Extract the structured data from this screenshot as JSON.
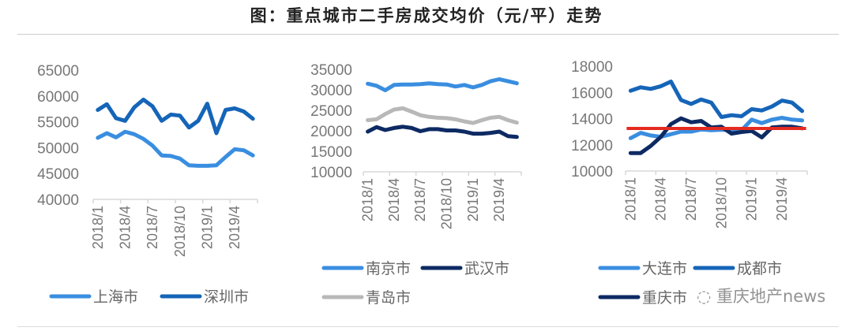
{
  "title": "图：重点城市二手房成交均价（元/平）走势",
  "watermark": "重庆地产news",
  "chart_data": [
    {
      "type": "line",
      "categories": [
        "2018/1",
        "2018/2",
        "2018/3",
        "2018/4",
        "2018/5",
        "2018/6",
        "2018/7",
        "2018/8",
        "2018/9",
        "2018/10",
        "2018/11",
        "2018/12",
        "2019/1",
        "2019/2",
        "2019/3",
        "2019/4",
        "2019/5",
        "2019/6"
      ],
      "tick_labels": [
        "2018/1",
        "2018/4",
        "2018/7",
        "2018/10",
        "2019/1",
        "2019/4"
      ],
      "ylim": [
        40000,
        65000
      ],
      "yticks": [
        "65000",
        "60000",
        "55000",
        "50000",
        "45000",
        "40000"
      ],
      "grid": false,
      "legend": "bottom",
      "series": [
        {
          "name": "上海市",
          "color": "#3a8ee0",
          "values": [
            51900,
            52800,
            52000,
            53100,
            52600,
            51700,
            50400,
            48500,
            48400,
            47900,
            46600,
            46500,
            46500,
            46600,
            48200,
            49700,
            49500,
            48500
          ]
        },
        {
          "name": "深圳市",
          "color": "#1565b8",
          "values": [
            57300,
            58400,
            55700,
            55200,
            57800,
            59300,
            58000,
            55200,
            56400,
            56200,
            53900,
            55200,
            58500,
            52800,
            57300,
            57600,
            57000,
            55600
          ]
        }
      ]
    },
    {
      "type": "line",
      "categories": [
        "2018/1",
        "2018/2",
        "2018/3",
        "2018/4",
        "2018/5",
        "2018/6",
        "2018/7",
        "2018/8",
        "2018/9",
        "2018/10",
        "2018/11",
        "2018/12",
        "2019/1",
        "2019/2",
        "2019/3",
        "2019/4",
        "2019/5",
        "2019/6"
      ],
      "tick_labels": [
        "2018/1",
        "2018/4",
        "2018/7",
        "2018/10",
        "2019/1",
        "2019/4"
      ],
      "ylim": [
        10000,
        35000
      ],
      "yticks": [
        "35000",
        "30000",
        "25000",
        "20000",
        "15000",
        "10000"
      ],
      "grid": false,
      "legend": "bottom",
      "series": [
        {
          "name": "南京市",
          "color": "#3a8ee0",
          "values": [
            31500,
            31000,
            29900,
            31200,
            31300,
            31300,
            31400,
            31600,
            31400,
            31300,
            30800,
            31200,
            30600,
            31200,
            32100,
            32600,
            32100,
            31600
          ]
        },
        {
          "name": "武汉市",
          "color": "#0d2a63",
          "values": [
            19800,
            20900,
            20200,
            20700,
            21000,
            20700,
            19900,
            20400,
            20400,
            20100,
            20100,
            19800,
            19300,
            19300,
            19500,
            19800,
            18700,
            18500
          ]
        },
        {
          "name": "青岛市",
          "color": "#b8b8b8",
          "values": [
            22600,
            22800,
            24100,
            25200,
            25500,
            24700,
            23800,
            23400,
            23200,
            23100,
            22800,
            22300,
            21900,
            22600,
            23200,
            23400,
            22600,
            22000
          ]
        }
      ]
    },
    {
      "type": "line",
      "categories": [
        "2018/1",
        "2018/2",
        "2018/3",
        "2018/4",
        "2018/5",
        "2018/6",
        "2018/7",
        "2018/8",
        "2018/9",
        "2018/10",
        "2018/11",
        "2018/12",
        "2019/1",
        "2019/2",
        "2019/3",
        "2019/4",
        "2019/5",
        "2019/6"
      ],
      "tick_labels": [
        "2018/1",
        "2018/4",
        "2018/7",
        "2018/10",
        "2019/1",
        "2019/4"
      ],
      "ylim": [
        10000,
        18000
      ],
      "yticks": [
        "18000",
        "16000",
        "14000",
        "12000",
        "10000"
      ],
      "grid": false,
      "legend": "bottom",
      "series": [
        {
          "name": "大连市",
          "color": "#3a8ee0",
          "values": [
            12510,
            12910,
            12710,
            12610,
            12810,
            13010,
            13010,
            13170,
            13110,
            13150,
            13110,
            13110,
            13920,
            13660,
            13920,
            14060,
            13920,
            13860
          ]
        },
        {
          "name": "成都市",
          "color": "#1565b8",
          "values": [
            16130,
            16390,
            16270,
            16470,
            16830,
            15420,
            15120,
            15460,
            15220,
            14120,
            14260,
            14180,
            14720,
            14620,
            14920,
            15380,
            15220,
            14580
          ]
        },
        {
          "name": "重庆市",
          "color": "#0d2a63",
          "values": [
            11370,
            11370,
            11910,
            12610,
            13580,
            14020,
            13720,
            13820,
            13320,
            13380,
            12860,
            12980,
            13060,
            12570,
            13320,
            13380,
            13380,
            13260
          ]
        }
      ],
      "reference_line": {
        "value": 13250,
        "color": "#e52b20"
      }
    }
  ]
}
